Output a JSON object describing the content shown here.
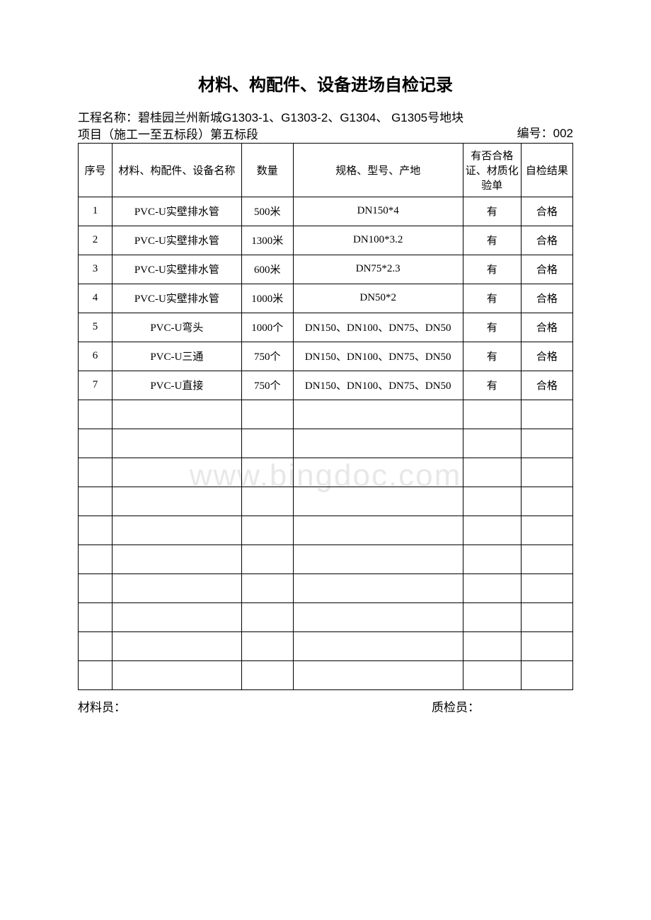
{
  "title": "材料、构配件、设备进场自检记录",
  "project_label": "工程名称：",
  "project_name": "碧桂园兰州新城G1303-1、G1303-2、G1304、 G1305号地块项目（施工一至五标段）第五标段",
  "serial_label": "编号：",
  "serial_value": "002",
  "watermark": "www.bingdoc.com",
  "table": {
    "columns": [
      "序号",
      "材料、构配件、设备名称",
      "数量",
      "规格、型号、产地",
      "有否合格证、材质化验单",
      "自检结果"
    ],
    "rows": [
      [
        "1",
        "PVC-U实壁排水管",
        "500米",
        "DN150*4",
        "有",
        "合格"
      ],
      [
        "2",
        "PVC-U实壁排水管",
        "1300米",
        "DN100*3.2",
        "有",
        "合格"
      ],
      [
        "3",
        "PVC-U实壁排水管",
        "600米",
        "DN75*2.3",
        "有",
        "合格"
      ],
      [
        "4",
        "PVC-U实壁排水管",
        "1000米",
        "DN50*2",
        "有",
        "合格"
      ],
      [
        "5",
        "PVC-U弯头",
        "1000个",
        "DN150、DN100、DN75、DN50",
        "有",
        "合格"
      ],
      [
        "6",
        "PVC-U三通",
        "750个",
        "DN150、DN100、DN75、DN50",
        "有",
        "合格"
      ],
      [
        "7",
        "PVC-U直接",
        "750个",
        "DN150、DN100、DN75、DN50",
        "有",
        "合格"
      ],
      [
        "",
        "",
        "",
        "",
        "",
        ""
      ],
      [
        "",
        "",
        "",
        "",
        "",
        ""
      ],
      [
        "",
        "",
        "",
        "",
        "",
        ""
      ],
      [
        "",
        "",
        "",
        "",
        "",
        ""
      ],
      [
        "",
        "",
        "",
        "",
        "",
        ""
      ],
      [
        "",
        "",
        "",
        "",
        "",
        ""
      ],
      [
        "",
        "",
        "",
        "",
        "",
        ""
      ],
      [
        "",
        "",
        "",
        "",
        "",
        ""
      ],
      [
        "",
        "",
        "",
        "",
        "",
        ""
      ],
      [
        "",
        "",
        "",
        "",
        "",
        ""
      ]
    ]
  },
  "footer": {
    "material_staff": "材料员：",
    "qc_staff": "质检员："
  },
  "colors": {
    "text": "#000000",
    "border": "#000000",
    "background": "#ffffff",
    "watermark": "#e8e8e8"
  },
  "typography": {
    "title_fontsize": 24,
    "body_fontsize": 15,
    "header_fontsize": 17
  }
}
